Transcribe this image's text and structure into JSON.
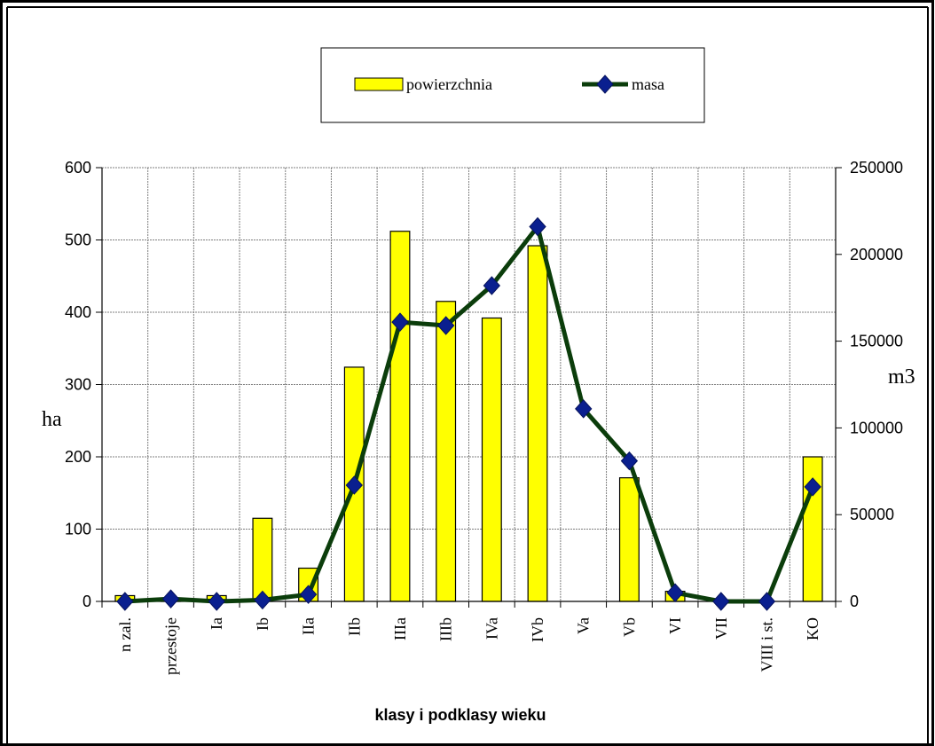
{
  "chart_data": {
    "type": "bar",
    "categories": [
      "n zal.",
      "przestoje",
      "Ia",
      "Ib",
      "IIa",
      "IIb",
      "IIIa",
      "IIIb",
      "IVa",
      "IVb",
      "Va",
      "Vb",
      "VI",
      "VII",
      "VIII i st.",
      "KO"
    ],
    "series": [
      {
        "name": "powierzchnia",
        "type": "bar",
        "axis": "left",
        "color": "#ffff00",
        "values": [
          8,
          4,
          8,
          115,
          46,
          324,
          512,
          415,
          392,
          492,
          0,
          171,
          14,
          0,
          0,
          200
        ]
      },
      {
        "name": "masa",
        "type": "line",
        "axis": "right",
        "color": "#0b3d0b",
        "marker_color": "#0a1f8f",
        "values": [
          0,
          1500,
          0,
          800,
          4000,
          67000,
          161000,
          159000,
          182000,
          216000,
          111000,
          81000,
          5000,
          0,
          0,
          66000
        ]
      }
    ],
    "xlabel": "klasy i podklasy wieku",
    "ylabel_left": "ha",
    "ylabel_right": "m3",
    "ylim_left": [
      0,
      600
    ],
    "ylim_right": [
      0,
      250000
    ],
    "yticks_left": [
      "0",
      "100",
      "200",
      "300",
      "400",
      "500",
      "600"
    ],
    "yticks_right": [
      "0",
      "50000",
      "100000",
      "150000",
      "200000",
      "250000"
    ],
    "grid": true,
    "legend_position": "top"
  }
}
